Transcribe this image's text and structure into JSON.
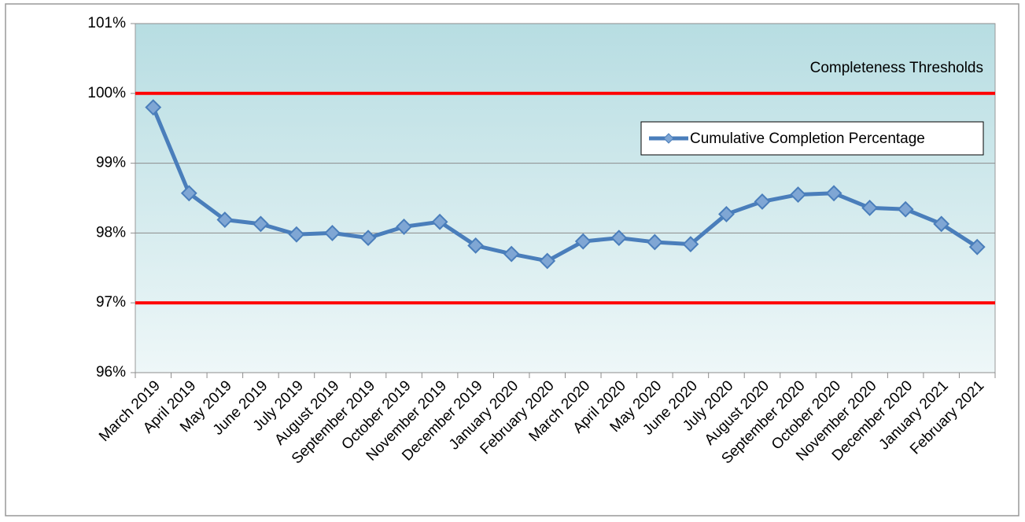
{
  "chart_data": {
    "type": "line",
    "annotation": "Completeness Thresholds",
    "categories": [
      "March 2019",
      "April 2019",
      "May 2019",
      "June 2019",
      "July 2019",
      "August 2019",
      "September 2019",
      "October 2019",
      "November 2019",
      "December 2019",
      "January 2020",
      "February 2020",
      "March 2020",
      "April 2020",
      "May 2020",
      "June 2020",
      "July 2020",
      "August 2020",
      "September 2020",
      "October 2020",
      "November 2020",
      "December 2020",
      "January 2021",
      "February 2021"
    ],
    "series": [
      {
        "name": "Cumulative Completion Percentage",
        "color": "#4a7ebb",
        "values": [
          99.8,
          98.57,
          98.19,
          98.13,
          97.98,
          98.0,
          97.93,
          98.09,
          98.16,
          97.82,
          97.7,
          97.6,
          97.88,
          97.93,
          97.87,
          97.84,
          98.27,
          98.45,
          98.55,
          98.57,
          98.36,
          98.34,
          98.13,
          97.8
        ]
      }
    ],
    "thresholds": [
      100,
      97
    ],
    "threshold_color": "#ff0000",
    "ylim": [
      96,
      101
    ],
    "yticks": [
      {
        "value": 96,
        "label": "96%"
      },
      {
        "value": 97,
        "label": "97%"
      },
      {
        "value": 98,
        "label": "98%"
      },
      {
        "value": 99,
        "label": "99%"
      },
      {
        "value": 100,
        "label": "100%"
      },
      {
        "value": 101,
        "label": "101%"
      }
    ],
    "grid": true,
    "legend": "upper right"
  }
}
